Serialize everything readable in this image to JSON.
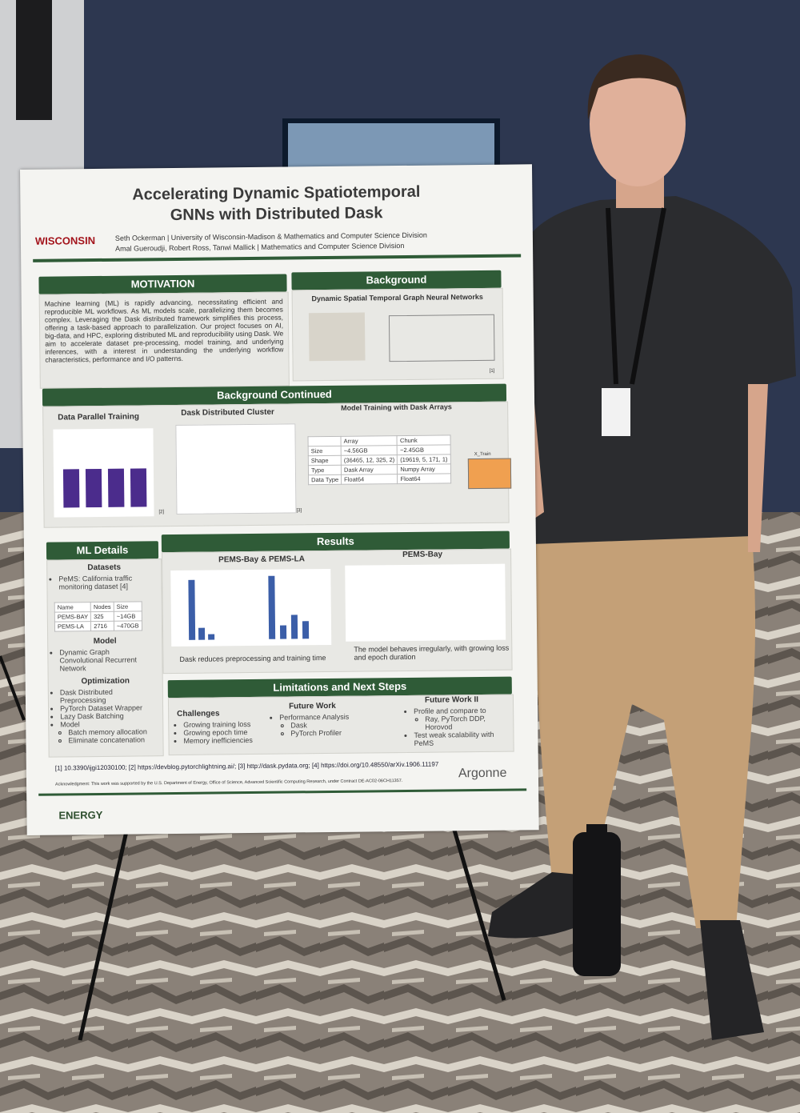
{
  "poster": {
    "title_lines": [
      "Accelerating Dynamic Spatiotemporal",
      "GNNs with Distributed Dask"
    ],
    "logo": "WISCONSIN",
    "authors": [
      "Seth Ockerman | University of Wisconsin-Madison & Mathematics and Computer Science Division",
      "Amal Gueroudji, Robert Ross, Tanwi Mallick | Mathematics and Computer Science Division"
    ],
    "motivation": {
      "heading": "MOTIVATION",
      "text": "Machine learning (ML) is rapidly advancing, necessitating efficient and reproducible ML workflows. As ML models scale, parallelizing them becomes complex. Leveraging the Dask distributed framework simplifies this process, offering a task-based approach to parallelization. Our project focuses on AI, big-data, and HPC, exploring distributed ML and reproducibility using Dask. We aim to accelerate dataset pre-processing, model training, and underlying inferences, with a interest in understanding the underlying workflow characteristics, performance and I/O patterns."
    },
    "background": {
      "heading": "Background",
      "subtitle": "Dynamic Spatial Temporal Graph Neural Networks",
      "ref": "[1]"
    },
    "background_continued": {
      "heading": "Background Continued",
      "subheadings": [
        "Data Parallel Training",
        "Dask Distributed Cluster",
        "Model Training with Dask Arrays"
      ],
      "table": {
        "columns": [
          "Array",
          "Chunk"
        ],
        "rows": [
          [
            "Size",
            "~4.56GB",
            "~2.45GB"
          ],
          [
            "Shape",
            "(36465, 12, 325, 2)",
            "(19619, 5, 171, 1)"
          ],
          [
            "Type",
            "Dask Array",
            "Numpy Array"
          ],
          [
            "Data Type",
            "Float64",
            "Float64"
          ]
        ]
      },
      "array_label": "X_Train",
      "refs": [
        "[2]",
        "[3]"
      ]
    },
    "ml_details": {
      "heading": "ML Details",
      "datasets": {
        "heading": "Datasets",
        "item": "PeMS: California traffic monitoring dataset [4]",
        "table": {
          "columns": [
            "Name",
            "Nodes",
            "Size"
          ],
          "rows": [
            [
              "PEMS-BAY",
              "325",
              "~14GB"
            ],
            [
              "PEMS-LA",
              "2716",
              "~470GB"
            ]
          ]
        }
      },
      "model": {
        "heading": "Model",
        "item": "Dynamic Graph Convolutional Recurrent Network"
      },
      "optimization": {
        "heading": "Optimization",
        "items": [
          "Dask Distributed Preprocessing",
          "PyTorch Dataset Wrapper",
          "Lazy Dask Batching",
          "Model"
        ],
        "subitems": [
          "Batch memory allocation",
          "Eliminate concatenation"
        ]
      }
    },
    "results": {
      "heading": "Results",
      "left_title": "PEMS-Bay & PEMS-LA",
      "right_title": "PEMS-Bay",
      "left_caption": "Dask reduces preprocessing and training time",
      "right_caption": "The model behaves irregularly, with growing loss and epoch duration"
    },
    "limitations": {
      "heading": "Limitations and Next Steps",
      "challenges": {
        "heading": "Challenges",
        "items": [
          "Growing training loss",
          "Growing epoch time",
          "Memory inefficiencies"
        ]
      },
      "future_work": {
        "heading": "Future Work",
        "items": [
          "Performance Analysis"
        ],
        "subitems": [
          "Dask",
          "PyTorch Profiler"
        ]
      },
      "future_work_2": {
        "heading": "Future Work II",
        "items": [
          "Profile and compare to",
          "Test weak scalability with PeMS"
        ],
        "subitems": [
          "Ray, PyTorch DDP, Horovod"
        ]
      }
    },
    "references": "[1] 10.3390/ijgi12030100; [2] https://devblog.pytorchlightning.ai/; [3] http://dask.pydata.org; [4] https://doi.org/10.48550/arXiv.1906.11197",
    "acknowledgment": "Acknowledgment: This work was supported by the U.S. Department of Energy, Office of Science, Advanced Scientific Computing Research, under Contract DE-AC02-06CH11357.",
    "footer_left": "ENERGY",
    "footer_right": "Argonne"
  }
}
